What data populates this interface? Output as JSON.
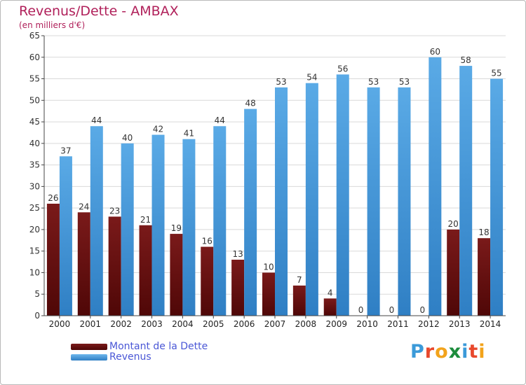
{
  "header": {
    "title": "Revenus/Dette - AMBAX",
    "subtitle": "(en milliers d'€)"
  },
  "colors": {
    "debt": "#7a1a1a",
    "debt_dark": "#4f0707",
    "revenue": "#5aaae6",
    "revenue_dark": "#2f7fc4",
    "grid": "#d9d9d9",
    "axis": "#444444"
  },
  "chart_data": {
    "type": "bar",
    "title": "Revenus/Dette - AMBAX",
    "subtitle": "(en milliers d'€)",
    "categories": [
      "2000",
      "2001",
      "2002",
      "2003",
      "2004",
      "2005",
      "2006",
      "2007",
      "2008",
      "2009",
      "2010",
      "2011",
      "2012",
      "2013",
      "2014"
    ],
    "series": [
      {
        "name": "Montant de la Dette",
        "values": [
          26,
          24,
          23,
          21,
          19,
          16,
          13,
          10,
          7,
          4,
          0,
          0,
          0,
          20,
          18
        ]
      },
      {
        "name": "Revenus",
        "values": [
          37,
          44,
          40,
          42,
          41,
          44,
          48,
          53,
          54,
          56,
          53,
          53,
          60,
          58,
          55
        ]
      }
    ],
    "ylim": [
      0,
      65
    ],
    "yticks": [
      0,
      5,
      10,
      15,
      20,
      25,
      30,
      35,
      40,
      45,
      50,
      55,
      60,
      65
    ],
    "grid": true,
    "legend": "bottom-left",
    "data_labels": true
  },
  "legend": {
    "items": [
      {
        "label": "Montant de la Dette"
      },
      {
        "label": "Revenus"
      }
    ]
  },
  "logo": {
    "letters": [
      "P",
      "r",
      "o",
      "x",
      "i",
      "t",
      "i"
    ],
    "colors": [
      "#3b9ad9",
      "#e8482c",
      "#f2a31b",
      "#1c8c3c",
      "#3b9ad9",
      "#e8482c",
      "#f2a31b"
    ]
  }
}
